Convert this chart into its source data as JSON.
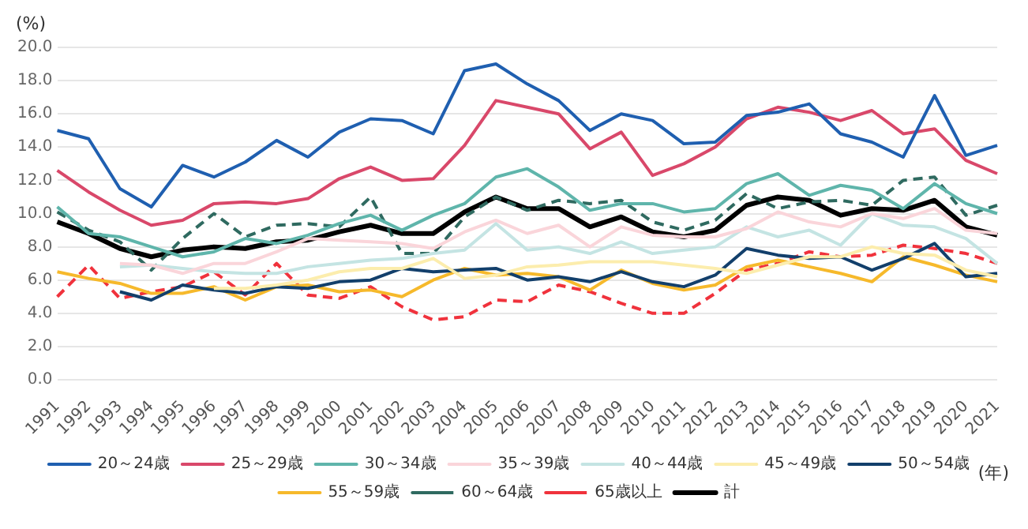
{
  "chart_data": {
    "type": "line",
    "ylabel": "(%)",
    "xlabel": "(年)",
    "categories": [
      "1991",
      "1992",
      "1993",
      "1994",
      "1995",
      "1996",
      "1997",
      "1998",
      "1999",
      "2000",
      "2001",
      "2002",
      "2003",
      "2004",
      "2005",
      "2006",
      "2007",
      "2008",
      "2009",
      "2010",
      "2011",
      "2012",
      "2013",
      "2014",
      "2015",
      "2016",
      "2017",
      "2018",
      "2019",
      "2020",
      "2021"
    ],
    "ylim": [
      0,
      20
    ],
    "yticks": [
      {
        "value": 0,
        "label": "0.0"
      },
      {
        "value": 2,
        "label": "2.0"
      },
      {
        "value": 4,
        "label": "4.0"
      },
      {
        "value": 6,
        "label": "6.0"
      },
      {
        "value": 8,
        "label": "8.0"
      },
      {
        "value": 10,
        "label": "10.0"
      },
      {
        "value": 12,
        "label": "12.0"
      },
      {
        "value": 14,
        "label": "14.0"
      },
      {
        "value": 16,
        "label": "16.0"
      },
      {
        "value": 18,
        "label": "18.0"
      },
      {
        "value": 20,
        "label": "20.0"
      }
    ],
    "grid": "y",
    "legend": "bottom",
    "marker": "none",
    "series": [
      {
        "name": "20～24歳",
        "color": "#1f5fb0",
        "line_style": "solid",
        "values": [
          15.0,
          14.5,
          11.5,
          10.4,
          12.9,
          12.2,
          13.1,
          14.4,
          13.4,
          14.9,
          15.7,
          15.6,
          14.8,
          18.6,
          19.0,
          17.8,
          16.8,
          15.0,
          16.0,
          15.6,
          14.2,
          14.3,
          15.9,
          16.1,
          16.6,
          14.8,
          14.3,
          13.4,
          17.1,
          13.5,
          14.1
        ]
      },
      {
        "name": "25～29歳",
        "color": "#d9486a",
        "line_style": "solid",
        "values": [
          12.6,
          11.3,
          10.2,
          9.3,
          9.6,
          10.6,
          10.7,
          10.6,
          10.9,
          12.1,
          12.8,
          12.0,
          12.1,
          14.1,
          16.8,
          16.4,
          16.0,
          13.9,
          14.9,
          12.3,
          13.0,
          14.0,
          15.7,
          16.4,
          16.1,
          15.6,
          16.2,
          14.8,
          15.1,
          13.2,
          12.4
        ]
      },
      {
        "name": "30～34歳",
        "color": "#5fb5ab",
        "line_style": "solid",
        "values": [
          10.4,
          8.8,
          8.6,
          8.0,
          7.4,
          7.7,
          8.5,
          8.2,
          8.7,
          9.4,
          9.9,
          9.0,
          9.9,
          10.6,
          12.2,
          12.7,
          11.6,
          10.2,
          10.6,
          10.6,
          10.1,
          10.3,
          11.8,
          12.4,
          11.1,
          11.7,
          11.4,
          10.3,
          11.8,
          10.6,
          10.0
        ]
      },
      {
        "name": "35～39歳",
        "color": "#fad5da",
        "line_style": "solid",
        "values": [
          null,
          null,
          7.0,
          6.9,
          6.4,
          7.0,
          7.0,
          7.7,
          8.5,
          8.4,
          8.3,
          8.2,
          7.9,
          8.9,
          9.6,
          8.8,
          9.3,
          8.0,
          9.2,
          8.7,
          8.6,
          8.6,
          9.1,
          10.1,
          9.5,
          9.2,
          10.0,
          9.7,
          10.3,
          9.0,
          8.8
        ]
      },
      {
        "name": "40～44歳",
        "color": "#c4e4e3",
        "line_style": "solid",
        "values": [
          null,
          null,
          6.8,
          6.9,
          6.7,
          6.5,
          6.4,
          6.4,
          6.8,
          7.0,
          7.2,
          7.3,
          7.6,
          7.8,
          9.4,
          7.8,
          8.0,
          7.6,
          8.3,
          7.6,
          7.8,
          8.0,
          9.2,
          8.6,
          9.0,
          8.1,
          10.0,
          9.3,
          9.2,
          8.5,
          7.0
        ]
      },
      {
        "name": "45～49歳",
        "color": "#fcedad",
        "line_style": "solid",
        "values": [
          null,
          null,
          null,
          null,
          null,
          5.5,
          5.5,
          5.7,
          6.0,
          6.5,
          6.7,
          6.7,
          7.3,
          6.1,
          6.3,
          6.8,
          6.9,
          7.1,
          7.1,
          7.1,
          6.9,
          6.7,
          6.4,
          6.9,
          7.4,
          7.4,
          8.0,
          7.6,
          7.5,
          6.6,
          6.2
        ]
      },
      {
        "name": "50～54歳",
        "color": "#123f6b",
        "line_style": "solid",
        "values": [
          null,
          null,
          5.3,
          4.8,
          5.7,
          5.4,
          5.2,
          5.6,
          5.5,
          5.9,
          6.0,
          6.7,
          6.5,
          6.6,
          6.7,
          6.0,
          6.2,
          5.9,
          6.5,
          5.9,
          5.6,
          6.3,
          7.9,
          7.5,
          7.3,
          7.4,
          6.6,
          7.3,
          8.2,
          6.2,
          6.4
        ]
      },
      {
        "name": "55～59歳",
        "color": "#f6b92b",
        "line_style": "solid",
        "values": [
          6.5,
          6.1,
          5.8,
          5.2,
          5.2,
          5.6,
          4.8,
          5.6,
          5.7,
          5.3,
          5.4,
          5.0,
          6.0,
          6.7,
          6.3,
          6.4,
          6.2,
          5.4,
          6.6,
          5.8,
          5.4,
          5.7,
          6.8,
          7.2,
          6.8,
          6.4,
          5.9,
          7.4,
          6.9,
          6.3,
          5.9
        ]
      },
      {
        "name": "60～64歳",
        "color": "#2f6a60",
        "line_style": "dashed",
        "values": [
          10.1,
          9.0,
          8.3,
          6.6,
          8.5,
          10.0,
          8.6,
          9.3,
          9.4,
          9.2,
          11.0,
          7.6,
          7.6,
          9.8,
          11.0,
          10.2,
          10.8,
          10.6,
          10.8,
          9.5,
          9.0,
          9.6,
          11.2,
          10.3,
          10.7,
          10.8,
          10.5,
          12.0,
          12.2,
          9.9,
          10.5
        ]
      },
      {
        "name": "65歳以上",
        "color": "#f0323c",
        "line_style": "dashed",
        "values": [
          5.0,
          6.9,
          4.9,
          5.3,
          5.6,
          6.5,
          5.1,
          7.0,
          5.1,
          4.9,
          5.6,
          4.4,
          3.6,
          3.8,
          4.8,
          4.7,
          5.7,
          5.3,
          4.6,
          4.0,
          4.0,
          5.2,
          6.6,
          7.0,
          7.7,
          7.4,
          7.5,
          8.1,
          7.9,
          7.6,
          7.0
        ]
      },
      {
        "name": "計",
        "color": "#000000",
        "line_style": "solid",
        "values": [
          9.5,
          8.8,
          7.9,
          7.4,
          7.8,
          8.0,
          7.9,
          8.3,
          8.4,
          8.9,
          9.3,
          8.8,
          8.8,
          10.1,
          11.0,
          10.3,
          10.3,
          9.2,
          9.8,
          8.9,
          8.6,
          9.0,
          10.5,
          11.0,
          10.8,
          9.9,
          10.3,
          10.2,
          10.8,
          9.2,
          8.7
        ]
      }
    ]
  }
}
